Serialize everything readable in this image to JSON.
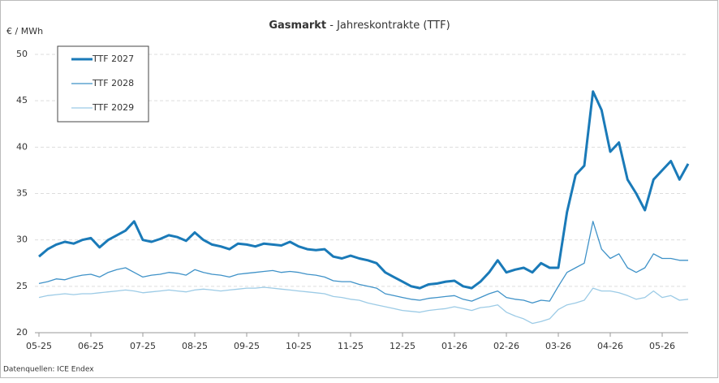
{
  "chart_data": {
    "type": "line",
    "title_bold": "Gasmarkt",
    "title": "- Jahreskontrakte (TTF)",
    "y_label": "€ / MWh",
    "source": "Datenquellen: ICE Endex",
    "categories": [
      "05-25",
      null,
      null,
      null,
      null,
      null,
      "06-25",
      null,
      null,
      null,
      null,
      null,
      "07-25",
      null,
      null,
      null,
      null,
      null,
      "08-25",
      null,
      null,
      null,
      null,
      null,
      "09-25",
      null,
      null,
      null,
      null,
      null,
      "10-25",
      null,
      null,
      null,
      null,
      null,
      "11-25",
      null,
      null,
      null,
      null,
      null,
      "12-25",
      null,
      null,
      null,
      null,
      null,
      "01-26",
      null,
      null,
      null,
      null,
      null,
      "02-26",
      null,
      null,
      null,
      null,
      null,
      "03-26",
      null,
      null,
      null,
      null,
      null,
      "04-26",
      null,
      null,
      null,
      null,
      null,
      "05-26",
      null,
      null,
      null
    ],
    "series": [
      {
        "name": "TTF 2027",
        "color": "#1a7ab8",
        "width": 3,
        "values": [
          28.2,
          29.0,
          29.5,
          29.8,
          29.6,
          30.0,
          30.2,
          29.2,
          30.0,
          30.5,
          31.0,
          32.0,
          30.0,
          29.8,
          30.1,
          30.5,
          30.3,
          29.9,
          30.8,
          30.0,
          29.5,
          29.3,
          29.0,
          29.6,
          29.5,
          29.3,
          29.6,
          29.5,
          29.4,
          29.8,
          29.3,
          29.0,
          28.9,
          29.0,
          28.2,
          28.0,
          28.3,
          28.0,
          27.8,
          27.5,
          26.5,
          26.0,
          25.5,
          25.0,
          24.8,
          25.2,
          25.3,
          25.5,
          25.6,
          25.0,
          24.8,
          25.5,
          26.5,
          27.8,
          26.5,
          26.8,
          27.0,
          26.5,
          27.5,
          27.0,
          27.0,
          33.0,
          37.0,
          38.0,
          46.0,
          44.0,
          39.5,
          40.5,
          36.5,
          35.0,
          33.2,
          36.5,
          37.5,
          38.5,
          36.5,
          38.2
        ]
      },
      {
        "name": "TTF 2028",
        "color": "#3f92c8",
        "width": 1.3,
        "values": [
          25.3,
          25.5,
          25.8,
          25.7,
          26.0,
          26.2,
          26.3,
          26.0,
          26.5,
          26.8,
          27.0,
          26.5,
          26.0,
          26.2,
          26.3,
          26.5,
          26.4,
          26.2,
          26.8,
          26.5,
          26.3,
          26.2,
          26.0,
          26.3,
          26.4,
          26.5,
          26.6,
          26.7,
          26.5,
          26.6,
          26.5,
          26.3,
          26.2,
          26.0,
          25.6,
          25.5,
          25.5,
          25.2,
          25.0,
          24.8,
          24.2,
          24.0,
          23.8,
          23.6,
          23.5,
          23.7,
          23.8,
          23.9,
          24.0,
          23.6,
          23.4,
          23.8,
          24.2,
          24.5,
          23.8,
          23.6,
          23.5,
          23.2,
          23.5,
          23.4,
          25.0,
          26.5,
          27.0,
          27.5,
          32.0,
          29.0,
          28.0,
          28.5,
          27.0,
          26.5,
          27.0,
          28.5,
          28.0,
          28.0,
          27.8,
          27.8
        ]
      },
      {
        "name": "TTF 2029",
        "color": "#9ccbe6",
        "width": 1.3,
        "values": [
          23.8,
          24.0,
          24.1,
          24.2,
          24.1,
          24.2,
          24.2,
          24.3,
          24.4,
          24.5,
          24.6,
          24.5,
          24.3,
          24.4,
          24.5,
          24.6,
          24.5,
          24.4,
          24.6,
          24.7,
          24.6,
          24.5,
          24.6,
          24.7,
          24.8,
          24.8,
          24.9,
          24.8,
          24.7,
          24.6,
          24.5,
          24.4,
          24.3,
          24.2,
          23.9,
          23.8,
          23.6,
          23.5,
          23.2,
          23.0,
          22.8,
          22.6,
          22.4,
          22.3,
          22.2,
          22.4,
          22.5,
          22.6,
          22.8,
          22.6,
          22.4,
          22.7,
          22.8,
          23.0,
          22.2,
          21.8,
          21.5,
          21.0,
          21.2,
          21.5,
          22.5,
          23.0,
          23.2,
          23.5,
          24.8,
          24.5,
          24.5,
          24.3,
          24.0,
          23.6,
          23.8,
          24.5,
          23.8,
          24.0,
          23.5,
          23.6
        ]
      }
    ],
    "ylim": [
      20,
      50
    ],
    "yticks": [
      20,
      25,
      30,
      35,
      40,
      45,
      50
    ],
    "grid": true,
    "legend": "upper left"
  }
}
